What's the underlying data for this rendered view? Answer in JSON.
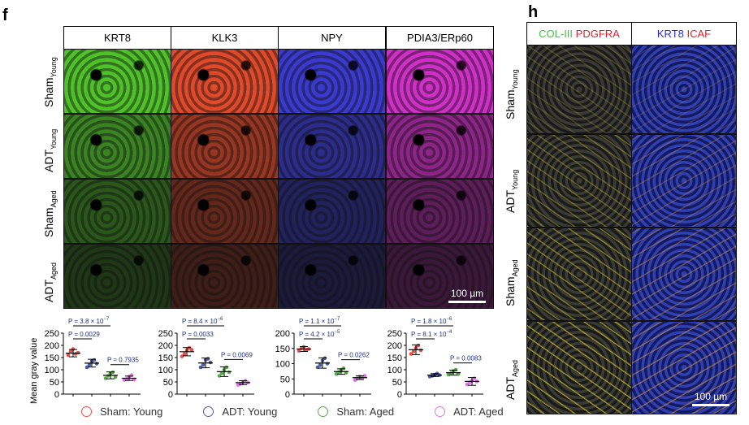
{
  "panel_f": {
    "label": "f",
    "columns": [
      "KRT8",
      "KLK3",
      "NPY",
      "PDIA3/ERp60"
    ],
    "column_colors": [
      "#4fc22a",
      "#e04a2a",
      "#3a3ad0",
      "#d030c8"
    ],
    "rows": [
      {
        "base": "Sham",
        "sub": "Young",
        "intensity": 1.0
      },
      {
        "base": "ADT",
        "sub": "Young",
        "intensity": 0.65
      },
      {
        "base": "Sham",
        "sub": "Aged",
        "intensity": 0.4
      },
      {
        "base": "ADT",
        "sub": "Aged",
        "intensity": 0.22
      }
    ],
    "scale_bar": "100 µm"
  },
  "panel_h": {
    "label": "h",
    "columns": [
      {
        "parts": [
          {
            "text": "COL-III",
            "color": "#3ec43e"
          },
          {
            "text": " PDGFRA",
            "color": "#e0202a"
          }
        ]
      },
      {
        "parts": [
          {
            "text": "KRT8",
            "color": "#2a2ad0"
          },
          {
            "text": " ICAF",
            "color": "#e0202a"
          }
        ]
      }
    ],
    "rows": [
      {
        "base": "Sham",
        "sub": "Young"
      },
      {
        "base": "ADT",
        "sub": "Young"
      },
      {
        "base": "Sham",
        "sub": "Aged"
      },
      {
        "base": "ADT",
        "sub": "Aged"
      }
    ],
    "scale_bar": "100 µm"
  },
  "chart_data": {
    "type": "scatter",
    "ylabel": "Mean gray value",
    "groups": [
      "Sham: Young",
      "ADT: Young",
      "Sham: Aged",
      "ADT: Aged"
    ],
    "group_colors": [
      "#e8504a",
      "#4a5fa0",
      "#5aa84a",
      "#e070e8"
    ],
    "charts": [
      {
        "ylim": [
          0,
          250
        ],
        "yticks": [
          0,
          50,
          100,
          150,
          200,
          250
        ],
        "means": [
          168,
          127,
          77,
          65
        ],
        "sd": [
          15,
          16,
          14,
          9
        ],
        "points": [
          [
            160,
            175,
            185,
            165,
            170
          ],
          [
            110,
            120,
            135,
            140,
            125
          ],
          [
            65,
            75,
            85,
            90,
            70
          ],
          [
            58,
            62,
            72,
            78,
            60
          ]
        ],
        "pvalues": [
          {
            "text": "P = 3.8 × 10",
            "exp": "−7",
            "from": 0,
            "to": 2
          },
          {
            "text": "P = 0.0029",
            "exp": "",
            "from": 0,
            "to": 1
          },
          {
            "text": "P = 0.7935",
            "exp": "",
            "from": 2,
            "to": 3
          }
        ]
      },
      {
        "ylim": [
          0,
          250
        ],
        "yticks": [
          0,
          50,
          100,
          150,
          200,
          250
        ],
        "means": [
          174,
          128,
          92,
          47
        ],
        "sd": [
          17,
          20,
          20,
          8
        ],
        "points": [
          [
            155,
            165,
            180,
            190,
            182
          ],
          [
            110,
            120,
            140,
            145,
            130
          ],
          [
            75,
            85,
            100,
            110,
            90
          ],
          [
            38,
            42,
            50,
            55,
            48
          ]
        ],
        "pvalues": [
          {
            "text": "P = 8.4 × 10",
            "exp": "−6",
            "from": 0,
            "to": 2
          },
          {
            "text": "P = 0.0033",
            "exp": "",
            "from": 0,
            "to": 1
          },
          {
            "text": "P = 0.0069",
            "exp": "",
            "from": 2,
            "to": 3
          }
        ]
      },
      {
        "ylim": [
          0,
          200
        ],
        "yticks": [
          0,
          50,
          100,
          150,
          200
        ],
        "means": [
          148,
          102,
          74,
          54
        ],
        "sd": [
          8,
          17,
          9,
          6
        ],
        "points": [
          [
            142,
            150,
            155,
            145,
            148
          ],
          [
            88,
            95,
            110,
            118,
            100
          ],
          [
            66,
            72,
            80,
            85,
            70
          ],
          [
            46,
            52,
            58,
            55,
            60
          ]
        ],
        "pvalues": [
          {
            "text": "P = 1.1 × 10",
            "exp": "−7",
            "from": 0,
            "to": 2
          },
          {
            "text": "P = 4.2 × 10",
            "exp": "−5",
            "from": 0,
            "to": 1
          },
          {
            "text": "P = 0.0262",
            "exp": "",
            "from": 2,
            "to": 3
          }
        ]
      },
      {
        "ylim": [
          0,
          250
        ],
        "yticks": [
          0,
          50,
          100,
          150,
          200,
          250
        ],
        "means": [
          182,
          78,
          88,
          52
        ],
        "sd": [
          20,
          6,
          10,
          16
        ],
        "points": [
          [
            165,
            175,
            190,
            200,
            180
          ],
          [
            72,
            75,
            80,
            84,
            78
          ],
          [
            80,
            85,
            95,
            100,
            82
          ],
          [
            40,
            48,
            55,
            65,
            52
          ]
        ],
        "pvalues": [
          {
            "text": "P = 1.8 × 10",
            "exp": "−6",
            "from": 0,
            "to": 2
          },
          {
            "text": "P = 8.1 × 10",
            "exp": "−4",
            "from": 0,
            "to": 1
          },
          {
            "text": "P = 0.0083",
            "exp": "",
            "from": 2,
            "to": 3
          }
        ]
      }
    ]
  }
}
